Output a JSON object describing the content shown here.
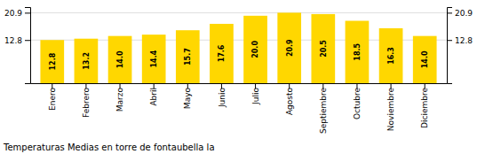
{
  "chart_data": {
    "type": "bar",
    "title": "Temperaturas Medias en torre de fontaubella la",
    "categories": [
      "Enero",
      "Febrero",
      "Marzo",
      "Abril",
      "Mayo",
      "Junio",
      "Julio",
      "Agosto",
      "Septiembre",
      "Octubre",
      "Noviembre",
      "Diciembre"
    ],
    "values": [
      12.8,
      13.2,
      14.0,
      14.4,
      15.7,
      17.6,
      20.0,
      20.9,
      20.5,
      18.5,
      16.3,
      14.0
    ],
    "value_labels": [
      "12.8",
      "13.2",
      "14.0",
      "14.4",
      "15.7",
      "17.6",
      "20.0",
      "20.9",
      "20.5",
      "18.5",
      "16.3",
      "14.0"
    ],
    "color": "#FFD700",
    "ylim": [
      0,
      22.572
    ],
    "yticks": [
      12.8,
      20.9
    ],
    "grid": true,
    "data_labels": true
  }
}
